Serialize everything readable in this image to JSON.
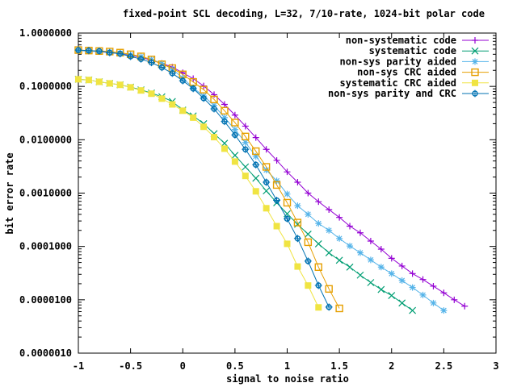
{
  "chart_data": {
    "type": "line",
    "title": "fixed-point SCL decoding, L=32, 7/10-rate, 1024-bit polar code",
    "xlabel": "signal to noise ratio",
    "ylabel": "bit error rate",
    "xlim": [
      -1,
      3
    ],
    "ylim": [
      1e-06,
      1
    ],
    "yscale": "log",
    "grid": false,
    "legend_placement": "top-right",
    "x_ticks": [
      "-1",
      "-0.5",
      "0",
      "0.5",
      "1",
      "1.5",
      "2",
      "2.5",
      "3"
    ],
    "x_tick_values": [
      -1,
      -0.5,
      0,
      0.5,
      1,
      1.5,
      2,
      2.5,
      3
    ],
    "y_ticks": [
      "1.0000000",
      "0.1000000",
      "0.0100000",
      "0.0010000",
      "0.0001000",
      "0.0000100",
      "0.0000010"
    ],
    "y_tick_values": [
      1,
      0.1,
      0.01,
      0.001,
      0.0001,
      1e-05,
      1e-06
    ],
    "series": [
      {
        "name": "non-systematic code",
        "color": "#9400d3",
        "marker": "plus",
        "x_start": -1.0,
        "x_step": 0.1,
        "values": [
          0.47,
          0.46,
          0.45,
          0.43,
          0.41,
          0.38,
          0.35,
          0.31,
          0.27,
          0.23,
          0.18,
          0.14,
          0.102,
          0.07,
          0.046,
          0.029,
          0.018,
          0.011,
          0.0066,
          0.0041,
          0.0025,
          0.0016,
          0.001,
          0.00069,
          0.00049,
          0.00035,
          0.00024,
          0.00018,
          0.000126,
          8.9e-05,
          6e-05,
          4.3e-05,
          3.1e-05,
          2.4e-05,
          1.8e-05,
          1.35e-05,
          1e-05,
          7.6e-06
        ]
      },
      {
        "name": "systematic code",
        "color": "#009e73",
        "marker": "cross",
        "x_start": -1.0,
        "x_step": 0.1,
        "values": [
          0.136,
          0.132,
          0.122,
          0.114,
          0.107,
          0.097,
          0.086,
          0.075,
          0.064,
          0.052,
          0.036,
          0.028,
          0.02,
          0.013,
          0.0086,
          0.0051,
          0.0031,
          0.0019,
          0.0011,
          0.00066,
          0.00041,
          0.00026,
          0.00017,
          0.000112,
          7.6e-05,
          5.5e-05,
          4.1e-05,
          2.9e-05,
          2.1e-05,
          1.56e-05,
          1.2e-05,
          8.7e-06,
          6.3e-06
        ]
      },
      {
        "name": "non-sys parity aided",
        "color": "#56b4e9",
        "marker": "star",
        "x_start": -1.0,
        "x_step": 0.1,
        "values": [
          0.47,
          0.46,
          0.45,
          0.44,
          0.42,
          0.39,
          0.36,
          0.32,
          0.27,
          0.21,
          0.144,
          0.094,
          0.066,
          0.044,
          0.026,
          0.0155,
          0.0089,
          0.0049,
          0.0027,
          0.0017,
          0.00096,
          0.00058,
          0.0004,
          0.00027,
          0.0002,
          0.000141,
          0.000102,
          7.6e-05,
          5.6e-05,
          4.1e-05,
          3.1e-05,
          2.3e-05,
          1.7e-05,
          1.23e-05,
          8.7e-06,
          6.3e-06
        ]
      },
      {
        "name": "non-sys CRC aided",
        "color": "#e69f00",
        "marker": "open-square",
        "x_start": -1.0,
        "x_step": 0.1,
        "values": [
          0.48,
          0.47,
          0.46,
          0.45,
          0.43,
          0.4,
          0.365,
          0.32,
          0.26,
          0.22,
          0.168,
          0.121,
          0.087,
          0.057,
          0.035,
          0.021,
          0.0115,
          0.0061,
          0.0031,
          0.00142,
          0.00066,
          0.00028,
          0.00012,
          4.1e-05,
          1.6e-05,
          6.9e-06
        ]
      },
      {
        "name": "systematic CRC aided",
        "color": "#f0e442",
        "marker": "filled-square",
        "x_start": -1.0,
        "x_step": 0.1,
        "values": [
          0.136,
          0.132,
          0.122,
          0.114,
          0.107,
          0.096,
          0.084,
          0.073,
          0.059,
          0.046,
          0.035,
          0.026,
          0.0175,
          0.0112,
          0.0068,
          0.0039,
          0.0021,
          0.00108,
          0.00052,
          0.00024,
          0.000112,
          4.2e-05,
          1.85e-05,
          7.2e-06
        ]
      },
      {
        "name": "non-sys parity and CRC",
        "color": "#0072b2",
        "marker": "circle-plus",
        "x_start": -1.0,
        "x_step": 0.1,
        "values": [
          0.48,
          0.47,
          0.46,
          0.43,
          0.41,
          0.365,
          0.325,
          0.28,
          0.226,
          0.176,
          0.128,
          0.091,
          0.06,
          0.038,
          0.022,
          0.0123,
          0.0066,
          0.0034,
          0.0016,
          0.00073,
          0.00033,
          0.000141,
          5.3e-05,
          1.86e-05,
          7.3e-06
        ]
      }
    ]
  }
}
